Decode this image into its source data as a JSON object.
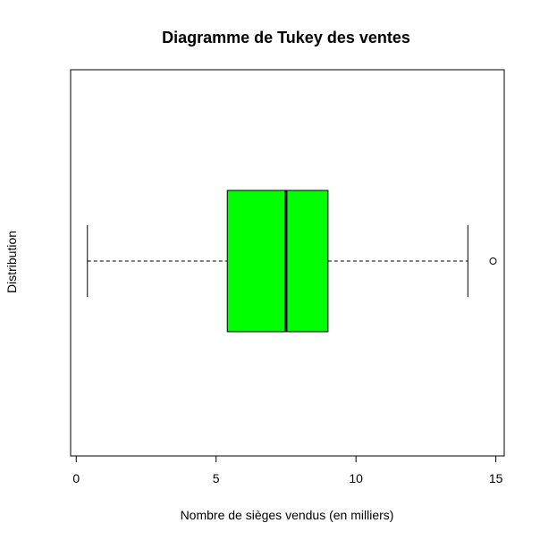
{
  "chart_data": {
    "type": "boxplot",
    "orientation": "horizontal",
    "title": "Diagramme de Tukey des ventes",
    "xlabel": "Nombre de sièges vendus (en milliers)",
    "ylabel": "Distribution",
    "xlim": [
      -0.2,
      15.3
    ],
    "x_ticks": [
      0,
      5,
      10,
      15
    ],
    "box": {
      "whisker_low": 0.4,
      "q1": 5.4,
      "median": 7.5,
      "q3": 9.0,
      "whisker_high": 14.0,
      "outliers": [
        14.9
      ],
      "fill_color": "#00ff00",
      "line_color": "#000000"
    },
    "grid": false,
    "legend": "none"
  }
}
